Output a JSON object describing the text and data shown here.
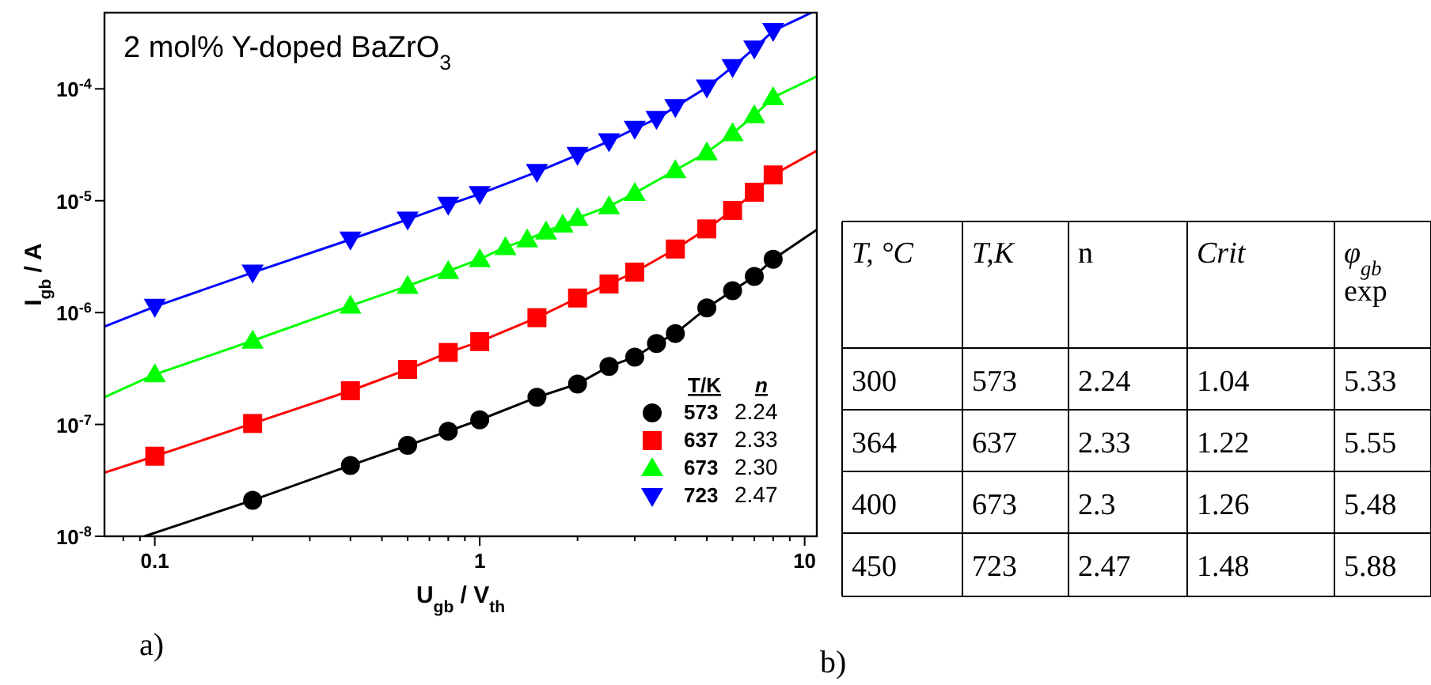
{
  "chart_data": [
    {
      "type": "scatter",
      "title": "2 mol% Y-doped BaZrO$_{3}$",
      "xlabel": "U$_{gb}$ / V$_{th}$",
      "ylabel": "I$_{gb}$ / A",
      "legend_title": "T/K",
      "legend": "bottom right",
      "log": "xy",
      "grid": false,
      "xlim": [
        0.07,
        10.9
      ],
      "ylim": [
        1e-08,
        0.00048
      ],
      "xticks": [
        {
          "value": 0.08,
          "label": null
        },
        {
          "value": 0.09,
          "label": null
        },
        {
          "value": 0.1,
          "label": "0.1"
        },
        {
          "value": 0.2,
          "label": null
        },
        {
          "value": 0.3,
          "label": null
        },
        {
          "value": 0.4,
          "label": null
        },
        {
          "value": 0.5,
          "label": null
        },
        {
          "value": 0.6,
          "label": null
        },
        {
          "value": 0.7,
          "label": null
        },
        {
          "value": 0.8,
          "label": null
        },
        {
          "value": 0.9,
          "label": null
        },
        1,
        {
          "value": 2,
          "label": null
        },
        {
          "value": 3,
          "label": null
        },
        {
          "value": 4,
          "label": null
        },
        {
          "value": 5,
          "label": null
        },
        {
          "value": 6,
          "label": null
        },
        {
          "value": 7,
          "label": null
        },
        {
          "value": 8,
          "label": null
        },
        {
          "value": 9,
          "label": null
        },
        10
      ],
      "yticks": [
        {
          "value": 1e-08,
          "label": "10$^{-8}$"
        },
        {
          "value": 1e-07,
          "label": "10$^{-7}$"
        },
        {
          "value": 1e-06,
          "label": "10$^{-6}$"
        },
        {
          "value": 1e-05,
          "label": "10$^{-5}$"
        },
        {
          "value": 0.0001,
          "label": "10$^{-4}$"
        }
      ],
      "annotations": [
        "n",
        "2.24",
        "2.33",
        "2.30",
        "2.47",
        "a)"
      ],
      "series": [
        {
          "type": "line",
          "color": "#000000",
          "x": [
            0.093,
            0.2,
            0.4,
            0.6,
            0.8,
            1,
            1.5,
            2,
            2.5,
            3,
            3.5,
            4,
            5,
            6,
            7,
            8,
            10.9
          ],
          "values": [
            1e-08,
            2.1e-08,
            4.3e-08,
            6.5e-08,
            8.7e-08,
            1.1e-07,
            1.75e-07,
            2.3e-07,
            3.3e-07,
            4e-07,
            5.3e-07,
            6.5e-07,
            1.1e-06,
            1.57e-06,
            2.1e-06,
            3e-06,
            5.5e-06
          ]
        },
        {
          "type": "line",
          "color": "#ff0000",
          "x": [
            0.07,
            0.1,
            0.2,
            0.4,
            0.6,
            0.8,
            1,
            1.5,
            2,
            2.5,
            3,
            4,
            5,
            6,
            7,
            8,
            10.9
          ],
          "values": [
            3.7e-08,
            5.2e-08,
            1.02e-07,
            2e-07,
            3.1e-07,
            4.4e-07,
            5.5e-07,
            9e-07,
            1.35e-06,
            1.8e-06,
            2.3e-06,
            3.7e-06,
            5.6e-06,
            8.2e-06,
            1.19e-05,
            1.7e-05,
            2.8e-05
          ]
        },
        {
          "type": "line",
          "color": "#00ff00",
          "x": [
            0.07,
            0.1,
            0.2,
            0.4,
            0.6,
            0.8,
            1,
            1.2,
            1.4,
            1.6,
            1.8,
            2,
            2.5,
            3,
            4,
            5,
            6,
            7,
            8,
            10.9
          ],
          "values": [
            1.75e-07,
            2.8e-07,
            5.6e-07,
            1.15e-06,
            1.73e-06,
            2.35e-06,
            3e-06,
            3.85e-06,
            4.5e-06,
            5.3e-06,
            6.1e-06,
            7e-06,
            8.9e-06,
            1.17e-05,
            1.87e-05,
            2.7e-05,
            4e-05,
            5.8e-05,
            8.4e-05,
            0.000129
          ]
        },
        {
          "type": "line",
          "color": "#0000ff",
          "x": [
            0.07,
            0.1,
            0.2,
            0.4,
            0.6,
            0.8,
            1,
            1.5,
            2,
            2.5,
            3,
            3.5,
            4,
            5,
            6,
            7,
            8,
            10.5
          ],
          "values": [
            7.5e-07,
            1.13e-06,
            2.28e-06,
            4.5e-06,
            6.8e-06,
            9.2e-06,
            1.15e-05,
            1.81e-05,
            2.57e-05,
            3.4e-05,
            4.4e-05,
            5.4e-05,
            6.9e-05,
            0.000103,
            0.000157,
            0.00023,
            0.00033,
            0.00048
          ]
        },
        {
          "type": "scatter",
          "name": "573",
          "color": "#000000",
          "marker": "circle",
          "x": [
            0.2,
            0.4,
            0.6,
            0.8,
            1,
            1.5,
            2,
            2.5,
            3,
            3.5,
            4,
            5,
            6,
            7,
            8
          ],
          "values": [
            2.1e-08,
            4.3e-08,
            6.5e-08,
            8.7e-08,
            1.1e-07,
            1.75e-07,
            2.3e-07,
            3.3e-07,
            4e-07,
            5.3e-07,
            6.5e-07,
            1.1e-06,
            1.57e-06,
            2.1e-06,
            3e-06
          ]
        },
        {
          "type": "scatter",
          "name": "637",
          "color": "#ff0000",
          "marker": "square",
          "x": [
            0.1,
            0.2,
            0.4,
            0.6,
            0.8,
            1,
            1.5,
            2,
            2.5,
            3,
            4,
            5,
            6,
            7,
            8
          ],
          "values": [
            5.2e-08,
            1.02e-07,
            2e-07,
            3.1e-07,
            4.4e-07,
            5.5e-07,
            9e-07,
            1.35e-06,
            1.8e-06,
            2.3e-06,
            3.7e-06,
            5.6e-06,
            8.2e-06,
            1.19e-05,
            1.7e-05
          ]
        },
        {
          "type": "scatter",
          "name": "673",
          "color": "#00ff00",
          "marker": "triangle",
          "x": [
            0.1,
            0.2,
            0.4,
            0.6,
            0.8,
            1,
            1.2,
            1.4,
            1.6,
            1.8,
            2,
            2.5,
            3,
            4,
            5,
            6,
            7,
            8
          ],
          "values": [
            2.8e-07,
            5.6e-07,
            1.15e-06,
            1.73e-06,
            2.35e-06,
            3e-06,
            3.85e-06,
            4.5e-06,
            5.3e-06,
            6.1e-06,
            7e-06,
            8.9e-06,
            1.17e-05,
            1.87e-05,
            2.7e-05,
            4e-05,
            5.8e-05,
            8.4e-05
          ]
        },
        {
          "type": "scatter",
          "name": "723",
          "color": "#0000ff",
          "marker": "triangle-down",
          "x": [
            0.1,
            0.2,
            0.4,
            0.6,
            0.8,
            1,
            1.5,
            2,
            2.5,
            3,
            3.5,
            4,
            5,
            6,
            7,
            8
          ],
          "values": [
            1.13e-06,
            2.28e-06,
            4.5e-06,
            6.8e-06,
            9.2e-06,
            1.15e-05,
            1.81e-05,
            2.57e-05,
            3.4e-05,
            4.4e-05,
            5.4e-05,
            6.9e-05,
            0.000103,
            0.000157,
            0.00023,
            0.00033
          ]
        }
      ]
    },
    {
      "type": "other",
      "categories": [
        "T, °C",
        "T,K",
        "n",
        "Crit",
        "φ$_{gb}$ exp"
      ],
      "annotations": [
        "300",
        "573",
        "2.24",
        "1.04",
        "5.33",
        "364",
        "637",
        "2.33",
        "1.22",
        "5.55",
        "400",
        "673",
        "2.3",
        "1.26",
        "5.48",
        "450",
        "723",
        "2.47",
        "1.48",
        "5.88",
        "b)"
      ]
    }
  ]
}
